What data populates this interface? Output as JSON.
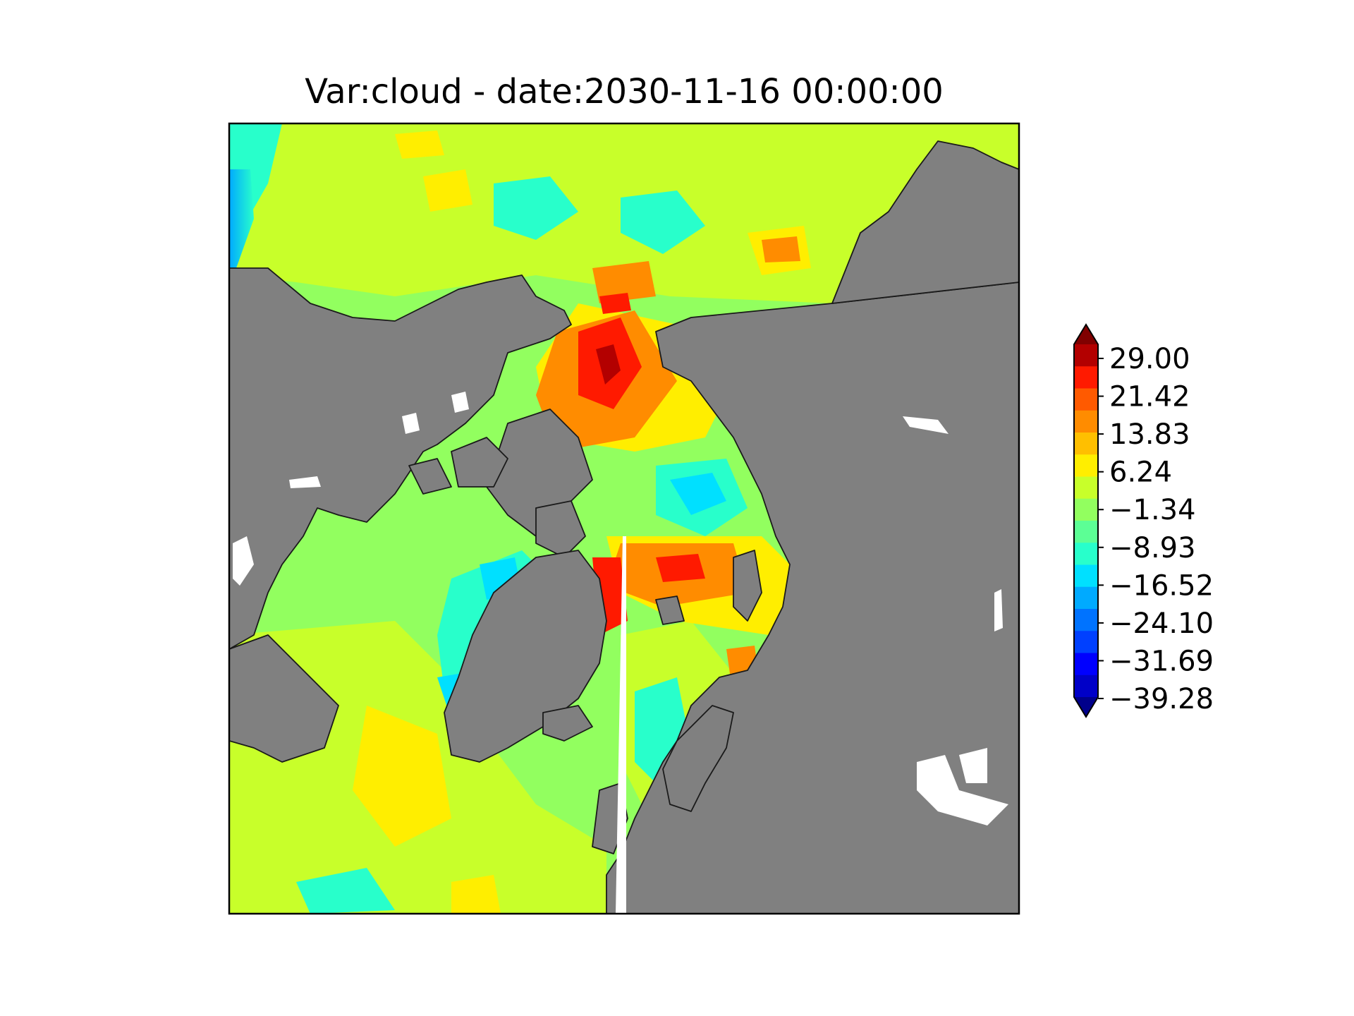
{
  "title": "Var:cloud - date:2030-11-16 00:00:00",
  "map": {
    "projection": "north-polar-stereographic",
    "land_color": "#808080",
    "ocean_field": "filled-contours"
  },
  "colorbar": {
    "type": "jet",
    "extend": "both",
    "ticks": [
      "29.00",
      "21.42",
      "13.83",
      "6.24",
      "−1.34",
      "−8.93",
      "−16.52",
      "−24.10",
      "−31.69",
      "−39.28"
    ],
    "colors": [
      "#800000",
      "#b30000",
      "#ff1a00",
      "#ff5a00",
      "#ff8c00",
      "#ffbf00",
      "#ffee00",
      "#c8ff2a",
      "#92ff5f",
      "#5cff95",
      "#28ffcb",
      "#00e0ff",
      "#00aaff",
      "#0073ff",
      "#0040ff",
      "#0000ff",
      "#0000c8",
      "#00008b"
    ]
  }
}
